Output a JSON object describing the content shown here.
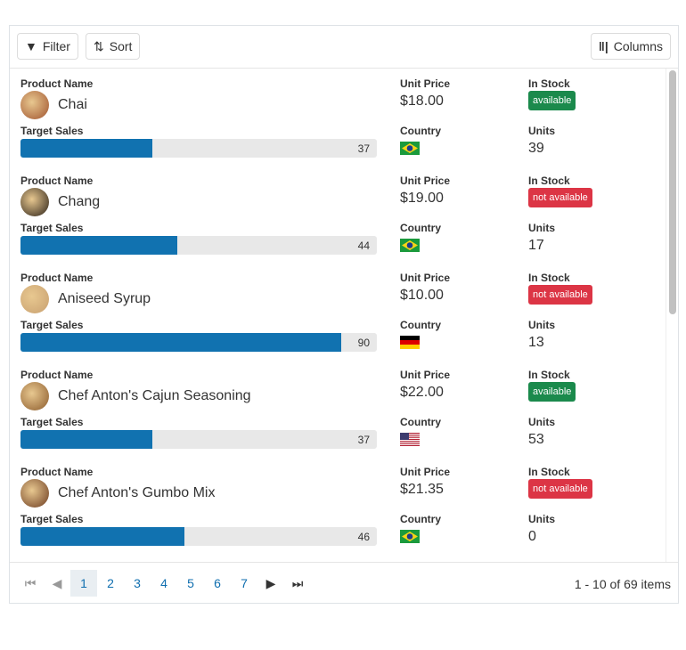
{
  "toolbar": {
    "filter": "Filter",
    "sort": "Sort",
    "columns": "Columns"
  },
  "labels": {
    "product_name": "Product Name",
    "target_sales": "Target Sales",
    "unit_price": "Unit Price",
    "country": "Country",
    "in_stock": "In Stock",
    "units": "Units"
  },
  "colors": {
    "bar": "#1172b0",
    "available": "#1b8a4c",
    "not_available": "#dc3545"
  },
  "rows": [
    {
      "name": "Chai",
      "target": 37,
      "price": "$18.00",
      "country": "Brazil",
      "stock": "available",
      "units": "39"
    },
    {
      "name": "Chang",
      "target": 44,
      "price": "$19.00",
      "country": "Brazil",
      "stock": "not available",
      "units": "17"
    },
    {
      "name": "Aniseed Syrup",
      "target": 90,
      "price": "$10.00",
      "country": "Germany",
      "stock": "not available",
      "units": "13"
    },
    {
      "name": "Chef Anton's Cajun Seasoning",
      "target": 37,
      "price": "$22.00",
      "country": "USA",
      "stock": "available",
      "units": "53"
    },
    {
      "name": "Chef Anton's Gumbo Mix",
      "target": 46,
      "price": "$21.35",
      "country": "Brazil",
      "stock": "not available",
      "units": "0"
    }
  ],
  "pager": {
    "pages": [
      "1",
      "2",
      "3",
      "4",
      "5",
      "6",
      "7"
    ],
    "current": "1",
    "info": "1 - 10 of 69 items"
  }
}
